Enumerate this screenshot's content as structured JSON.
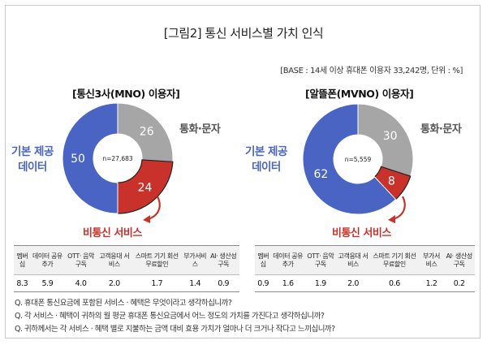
{
  "title": "[그림2] 통신 서비스별 가치 인식",
  "base_note": "[BASE : 14세 이상 휴대폰 이용자 33,242명, 단위 : %]",
  "chart_data": [
    {
      "type": "pie",
      "title": "[통신3사(MNO) 이용자]",
      "center_label": "n=27,683",
      "slices": [
        {
          "label": "통화·문자",
          "value": 26,
          "color": "#a6a6a6"
        },
        {
          "label": "비통신 서비스",
          "value": 24,
          "color": "#c8322a"
        },
        {
          "label": "기본 제공 데이터",
          "value": 50,
          "color": "#4a64c4"
        }
      ],
      "annotations": {
        "data_line1": "기본 제공",
        "data_line2": "데이터",
        "call": "통화·문자",
        "nontelecom": "비통신 서비스"
      },
      "table": {
        "headers": [
          "멤버십",
          "데이터 공유추가",
          "OTT· 음악 구독",
          "고객응대 서비스",
          "스마트 기기 회선 무료할인",
          "부가서비스",
          "AI· 생산성 구독"
        ],
        "values": [
          "8.3",
          "5.9",
          "4.0",
          "2.0",
          "1.7",
          "1.4",
          "0.9"
        ]
      }
    },
    {
      "type": "pie",
      "title": "[알뜰폰(MVNO) 이용자]",
      "center_label": "n=5,559",
      "slices": [
        {
          "label": "통화·문자",
          "value": 30,
          "color": "#a6a6a6"
        },
        {
          "label": "비통신 서비스",
          "value": 8,
          "color": "#c8322a"
        },
        {
          "label": "기본 제공 데이터",
          "value": 62,
          "color": "#4a64c4"
        }
      ],
      "annotations": {
        "data_line1": "기본 제공",
        "data_line2": "데이터",
        "call": "통화·문자",
        "nontelecom": "비통신 서비스"
      },
      "table": {
        "headers": [
          "멤버십",
          "데이터 공유추가",
          "OTT· 음악 구독",
          "고객응대 서비스",
          "스마트 기기 회선 무료할인",
          "부가서비스",
          "AI· 생산성 구독"
        ],
        "values": [
          "0.9",
          "1.6",
          "1.9",
          "2.0",
          "0.6",
          "1.2",
          "0.2"
        ]
      }
    }
  ],
  "questions": [
    "Q. 휴대폰 통신요금에 포함된 서비스 · 혜택은 무엇이라고 생각하십니까?",
    "Q. 각 서비스 · 혜택이 귀하의 월 평균 휴대폰 통신요금에서 어느 정도의 가치를 가진다고 생각하십니까?",
    "Q. 귀하께서는 각 서비스 · 혜택 별로 지불하는 금액 대비 효용 가치가 얼마나 더 크거나 작다고 느끼십니까?"
  ]
}
